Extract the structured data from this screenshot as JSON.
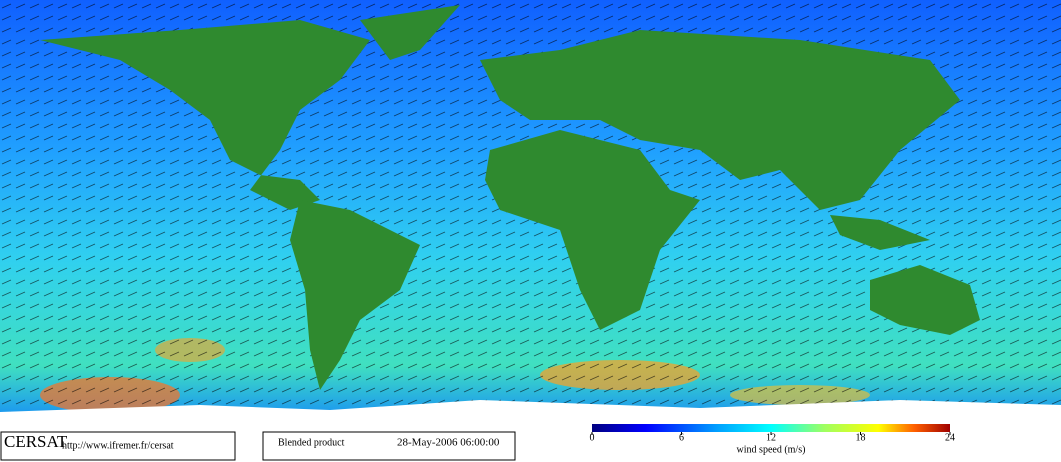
{
  "footer": {
    "logo": "CERSAT",
    "url": "http://www.ifremer.fr/cersat",
    "product": "Blended product",
    "date": "28-May-2006 06:00:00"
  },
  "colorbar": {
    "label": "wind speed (m/s)",
    "range": [
      0,
      24
    ],
    "ticks": [
      0,
      6,
      12,
      18,
      24
    ]
  }
}
